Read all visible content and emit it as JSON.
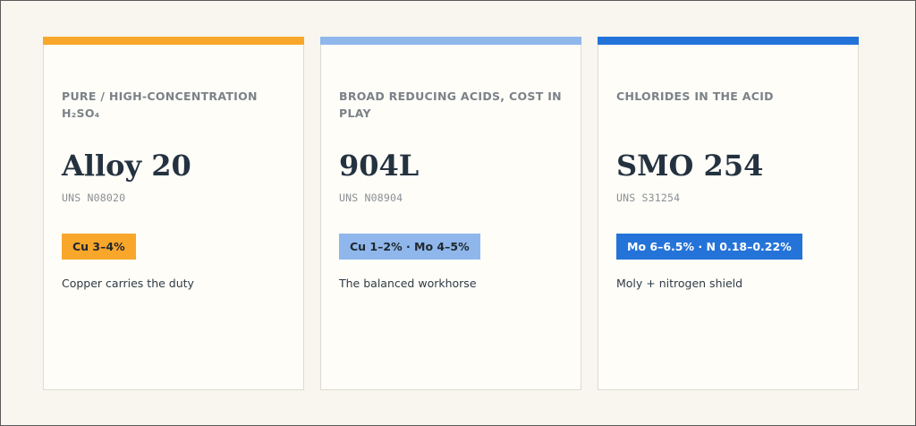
{
  "cards": [
    {
      "eyebrow": "PURE / HIGH-CONCENTRATION H₂SO₄",
      "alloy": "Alloy 20",
      "uns": "UNS N08020",
      "chip": "Cu 3–4%",
      "description": "Copper carries the duty",
      "accent_color": "#f9a72b",
      "chip_text_color": "#20282f"
    },
    {
      "eyebrow": "BROAD REDUCING ACIDS, COST IN PLAY",
      "alloy": "904L",
      "uns": "UNS N08904",
      "chip": "Cu 1–2% · Mo 4–5%",
      "description": "The balanced workhorse",
      "accent_color": "#8fb7ec",
      "chip_text_color": "#20282f"
    },
    {
      "eyebrow": "CHLORIDES IN THE ACID",
      "alloy": "SMO 254",
      "uns": "UNS S31254",
      "chip": "Mo 6–6.5% · N 0.18–0.22%",
      "description": "Moly + nitrogen shield",
      "accent_color": "#2473d9",
      "chip_text_color": "#ffffff"
    }
  ]
}
